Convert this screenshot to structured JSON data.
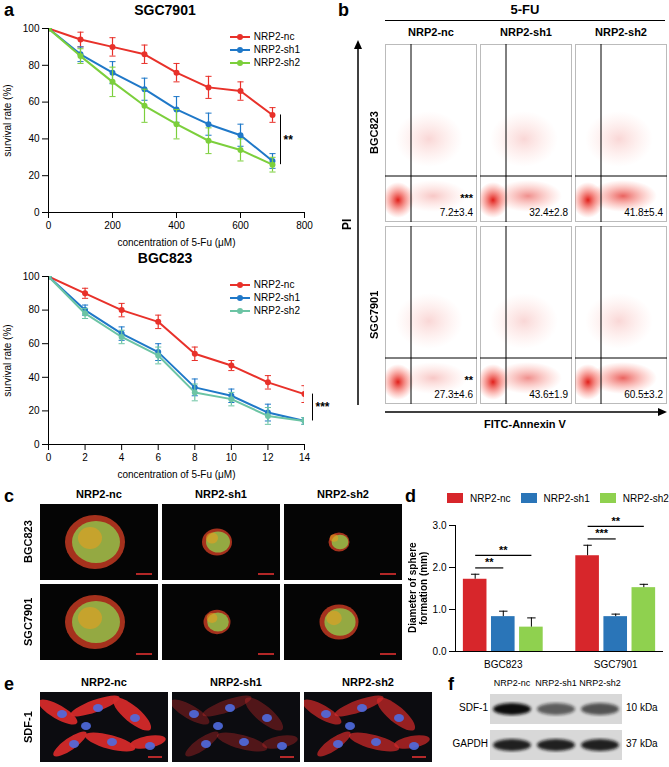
{
  "chart_data": [
    {
      "panel": "a",
      "type": "line",
      "title": "SGC7901",
      "x_label": "concentration of 5-Fu (μM)",
      "y_label": "survival rate (%)",
      "x": [
        0,
        100,
        200,
        300,
        400,
        500,
        600,
        700
      ],
      "series": [
        {
          "name": "NRP2-nc",
          "color": "#e8312a",
          "values": [
            100,
            94,
            90,
            86,
            76,
            68,
            66,
            53
          ],
          "errors": [
            0,
            4,
            5,
            5,
            5,
            6,
            5,
            4
          ]
        },
        {
          "name": "NRP2-sh1",
          "color": "#1f78c8",
          "values": [
            100,
            86,
            76,
            67,
            56,
            48,
            42,
            28
          ],
          "errors": [
            0,
            4,
            6,
            6,
            7,
            6,
            6,
            4
          ]
        },
        {
          "name": "NRP2-sh2",
          "color": "#7ccf3c",
          "values": [
            100,
            85,
            71,
            58,
            48,
            39,
            34,
            26
          ],
          "errors": [
            0,
            4,
            8,
            9,
            8,
            7,
            6,
            4
          ]
        }
      ],
      "xlim": [
        0,
        800
      ],
      "xticks": [
        0,
        200,
        400,
        600,
        800
      ],
      "ylim": [
        0,
        100
      ],
      "yticks": [
        0,
        20,
        40,
        60,
        80,
        100
      ],
      "annotation": "**",
      "legend": "top-right",
      "marker": "circle",
      "grid": false
    },
    {
      "panel": "a",
      "type": "line",
      "title": "BGC823",
      "x_label": "concentration of 5-Fu (μM)",
      "y_label": "survival rate (%)",
      "x": [
        0,
        2,
        4,
        6,
        8,
        10,
        12,
        14
      ],
      "series": [
        {
          "name": "NRP2-nc",
          "color": "#e8312a",
          "values": [
            100,
            90,
            80,
            73,
            54,
            47,
            37,
            30
          ],
          "errors": [
            0,
            3,
            4,
            4,
            4,
            3,
            4,
            5
          ]
        },
        {
          "name": "NRP2-sh1",
          "color": "#1f78c8",
          "values": [
            100,
            80,
            66,
            55,
            34,
            29,
            19,
            14
          ],
          "errors": [
            0,
            3,
            4,
            5,
            5,
            4,
            5,
            2
          ]
        },
        {
          "name": "NRP2-sh2",
          "color": "#6cc4a4",
          "values": [
            100,
            78,
            64,
            53,
            31,
            27,
            17,
            14
          ],
          "errors": [
            0,
            3,
            4,
            5,
            5,
            4,
            5,
            2
          ]
        }
      ],
      "xlim": [
        0,
        14
      ],
      "xticks": [
        0,
        2,
        4,
        6,
        8,
        10,
        12,
        14
      ],
      "ylim": [
        0,
        100
      ],
      "yticks": [
        0,
        20,
        40,
        60,
        80,
        100
      ],
      "annotation": "***",
      "legend": "top-right",
      "marker": "circle",
      "grid": false
    },
    {
      "panel": "d",
      "type": "bar",
      "y_label": "Diameter of sphere formation (mm)",
      "categories": [
        "BGC823",
        "SGC7901"
      ],
      "series": [
        {
          "name": "NRP2-nc",
          "color": "#d7262b",
          "values": [
            1.72,
            2.28
          ],
          "errors": [
            0.12,
            0.25
          ]
        },
        {
          "name": "NRP2-sh1",
          "color": "#2a75b8",
          "values": [
            0.83,
            0.83
          ],
          "errors": [
            0.13,
            0.06
          ]
        },
        {
          "name": "NRP2-sh2",
          "color": "#8fd14f",
          "values": [
            0.58,
            1.52
          ],
          "errors": [
            0.22,
            0.08
          ]
        }
      ],
      "ylim": [
        0,
        3
      ],
      "yticks": [
        0,
        1,
        2,
        3
      ],
      "legend": "top-left",
      "grid": false,
      "significance": [
        {
          "category": "BGC823",
          "pair": [
            "NRP2-nc",
            "NRP2-sh1"
          ],
          "label": "**"
        },
        {
          "category": "BGC823",
          "pair": [
            "NRP2-nc",
            "NRP2-sh2"
          ],
          "label": "**"
        },
        {
          "category": "SGC7901",
          "pair": [
            "NRP2-nc",
            "NRP2-sh1"
          ],
          "label": "***"
        },
        {
          "category": "SGC7901",
          "pair": [
            "NRP2-nc",
            "NRP2-sh2"
          ],
          "label": "**"
        }
      ]
    }
  ],
  "figure": {
    "b": {
      "panel": "b",
      "title": "5-FU",
      "columns": [
        "NRP2-nc",
        "NRP2-sh1",
        "NRP2-sh2"
      ],
      "rows": [
        {
          "name": "BGC823",
          "labels": [
            "7.2±3.4",
            "32.4±2.8",
            "41.8±5.4"
          ],
          "significance": "***"
        },
        {
          "name": "SGC7901",
          "labels": [
            "27.3±4.6",
            "43.6±1.9",
            "60.5±3.2"
          ],
          "significance": "**"
        }
      ],
      "y_label": "PI",
      "x_label": "FITC-Annexin V"
    },
    "c": {
      "panel": "c",
      "columns": [
        "NRP2-nc",
        "NRP2-sh1",
        "NRP2-sh2"
      ],
      "rows": [
        "BGC823",
        "SGC7901"
      ]
    },
    "e": {
      "panel": "e",
      "columns": [
        "NRP2-nc",
        "NRP2-sh1",
        "NRP2-sh2"
      ],
      "row_label": "SDF-1"
    },
    "f": {
      "panel": "f",
      "columns": [
        "NRP2-nc",
        "NRP2-sh1",
        "NRP2-sh2"
      ],
      "rows": [
        {
          "name": "SDF-1",
          "size": "10 kDa"
        },
        {
          "name": "GAPDH",
          "size": "37 kDa"
        }
      ]
    }
  }
}
